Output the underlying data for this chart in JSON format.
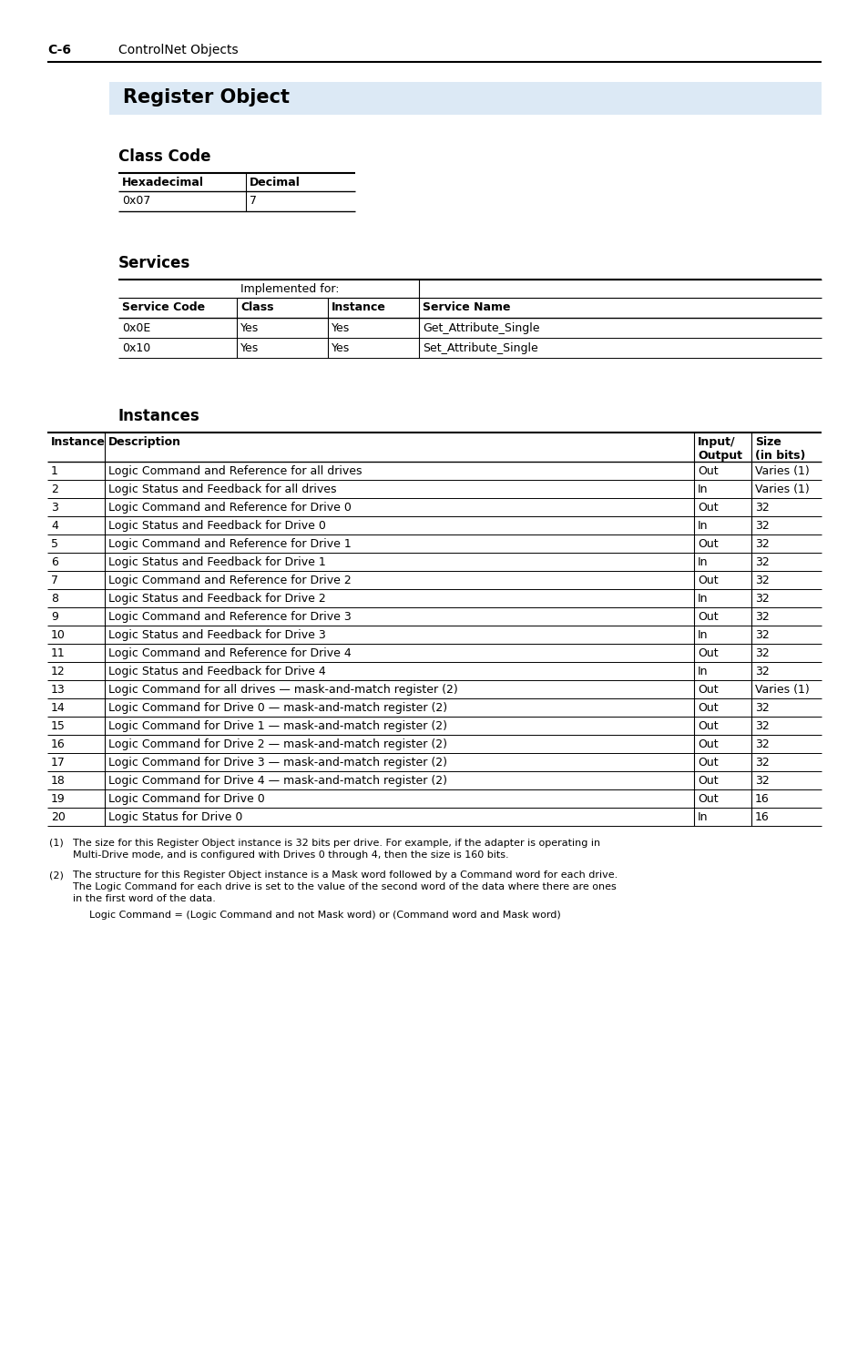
{
  "page_label": "C-6",
  "page_title": "ControlNet Objects",
  "section_title": "Register Object",
  "section_bg_color": "#dce9f5",
  "subsection1": "Class Code",
  "class_code_headers": [
    "Hexadecimal",
    "Decimal"
  ],
  "class_code_data": [
    [
      "0x07",
      "7"
    ]
  ],
  "subsection2": "Services",
  "services_col2_header": "Implemented for:",
  "services_headers": [
    "Service Code",
    "Class",
    "Instance",
    "Service Name"
  ],
  "services_data": [
    [
      "0x0E",
      "Yes",
      "Yes",
      "Get_Attribute_Single"
    ],
    [
      "0x10",
      "Yes",
      "Yes",
      "Set_Attribute_Single"
    ]
  ],
  "subsection3": "Instances",
  "instances_data": [
    [
      "1",
      "Logic Command and Reference for all drives",
      "Out",
      "Varies (1)"
    ],
    [
      "2",
      "Logic Status and Feedback for all drives",
      "In",
      "Varies (1)"
    ],
    [
      "3",
      "Logic Command and Reference for Drive 0",
      "Out",
      "32"
    ],
    [
      "4",
      "Logic Status and Feedback for Drive 0",
      "In",
      "32"
    ],
    [
      "5",
      "Logic Command and Reference for Drive 1",
      "Out",
      "32"
    ],
    [
      "6",
      "Logic Status and Feedback for Drive 1",
      "In",
      "32"
    ],
    [
      "7",
      "Logic Command and Reference for Drive 2",
      "Out",
      "32"
    ],
    [
      "8",
      "Logic Status and Feedback for Drive 2",
      "In",
      "32"
    ],
    [
      "9",
      "Logic Command and Reference for Drive 3",
      "Out",
      "32"
    ],
    [
      "10",
      "Logic Status and Feedback for Drive 3",
      "In",
      "32"
    ],
    [
      "11",
      "Logic Command and Reference for Drive 4",
      "Out",
      "32"
    ],
    [
      "12",
      "Logic Status and Feedback for Drive 4",
      "In",
      "32"
    ],
    [
      "13",
      "Logic Command for all drives — mask-and-match register (2)",
      "Out",
      "Varies (1)"
    ],
    [
      "14",
      "Logic Command for Drive 0 — mask-and-match register (2)",
      "Out",
      "32"
    ],
    [
      "15",
      "Logic Command for Drive 1 — mask-and-match register (2)",
      "Out",
      "32"
    ],
    [
      "16",
      "Logic Command for Drive 2 — mask-and-match register (2)",
      "Out",
      "32"
    ],
    [
      "17",
      "Logic Command for Drive 3 — mask-and-match register (2)",
      "Out",
      "32"
    ],
    [
      "18",
      "Logic Command for Drive 4 — mask-and-match register (2)",
      "Out",
      "32"
    ],
    [
      "19",
      "Logic Command for Drive 0",
      "Out",
      "16"
    ],
    [
      "20",
      "Logic Status for Drive 0",
      "In",
      "16"
    ]
  ],
  "footnote1_label": "(1)",
  "footnote1_line1": "The size for this Register Object instance is 32 bits per drive. For example, if the adapter is operating in",
  "footnote1_line2": "Multi-Drive mode, and is configured with Drives 0 through 4, then the size is 160 bits.",
  "footnote2_label": "(2)",
  "footnote2_line1": "The structure for this Register Object instance is a Mask word followed by a Command word for each drive.",
  "footnote2_line2": "The Logic Command for each drive is set to the value of the second word of the data where there are ones",
  "footnote2_line3": "in the first word of the data.",
  "footnote2_extra": "Logic Command = (Logic Command and not Mask word) or (Command word and Mask word)",
  "bg_color": "#ffffff",
  "text_color": "#000000"
}
